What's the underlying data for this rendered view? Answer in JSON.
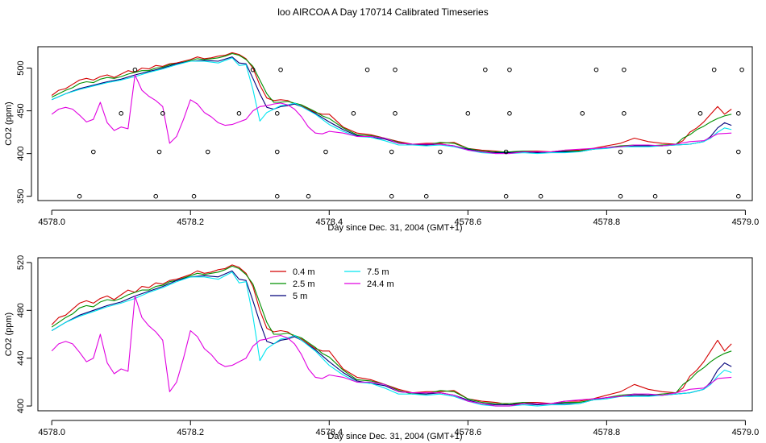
{
  "page_title": "loo AIRCOA A  Day 170714  Calibrated Timeseries",
  "colors": {
    "0.4 m": "#d40000",
    "2.5 m": "#009000",
    "5 m": "#00007a",
    "7.5 m": "#00e5f0",
    "24.4 m": "#e000e0"
  },
  "chart_data": [
    {
      "type": "line",
      "xlabel": "Day since Dec. 31, 2004 (GMT+1)",
      "ylabel": "CO2 (ppm)",
      "xlim": [
        4577.98,
        4579.01
      ],
      "ylim": [
        345,
        525
      ],
      "xticks": [
        4578.0,
        4578.2,
        4578.4,
        4578.6,
        4578.8,
        4579.0
      ],
      "xtick_labels": [
        "4578.0",
        "4578.2",
        "4578.4",
        "4578.6",
        "4578.8",
        "4579.0"
      ],
      "yticks": [
        350,
        400,
        450,
        500
      ],
      "ytick_labels": [
        "350",
        "400",
        "450",
        "500"
      ],
      "legend": false,
      "series": [
        {
          "color_key": "0.4 m",
          "x": [
            4578.0,
            4578.01,
            4578.02,
            4578.03,
            4578.04,
            4578.05,
            4578.06,
            4578.07,
            4578.08,
            4578.09,
            4578.1,
            4578.11,
            4578.12,
            4578.13,
            4578.14,
            4578.15,
            4578.16,
            4578.17,
            4578.18,
            4578.19,
            4578.2,
            4578.21,
            4578.22,
            4578.23,
            4578.24,
            4578.25,
            4578.26,
            4578.27,
            4578.28,
            4578.29,
            4578.3,
            4578.31,
            4578.32,
            4578.33,
            4578.34,
            4578.35,
            4578.36,
            4578.37,
            4578.38,
            4578.39,
            4578.4,
            4578.42,
            4578.44,
            4578.46,
            4578.48,
            4578.5,
            4578.52,
            4578.54,
            4578.56,
            4578.58,
            4578.6,
            4578.62,
            4578.64,
            4578.66,
            4578.68,
            4578.7,
            4578.72,
            4578.74,
            4578.76,
            4578.78,
            4578.8,
            4578.82,
            4578.84,
            4578.86,
            4578.88,
            4578.9,
            4578.91,
            4578.92,
            4578.93,
            4578.94,
            4578.95,
            4578.96,
            4578.97,
            4578.98
          ],
          "y": [
            468,
            474,
            476,
            481,
            486,
            488,
            486,
            490,
            492,
            489,
            493,
            497,
            495,
            500,
            499,
            503,
            502,
            505,
            506,
            508,
            510,
            513,
            511,
            512,
            514,
            515,
            518,
            516,
            511,
            500,
            480,
            465,
            462,
            463,
            462,
            458,
            456,
            452,
            448,
            446,
            446,
            431,
            424,
            422,
            418,
            414,
            411,
            412,
            412,
            413,
            406,
            404,
            403,
            401,
            403,
            403,
            402,
            404,
            404,
            406,
            409,
            412,
            418,
            414,
            412,
            411,
            415,
            425,
            430,
            437,
            446,
            455,
            446,
            452
          ]
        },
        {
          "color_key": "2.5 m",
          "x": [
            4578.0,
            4578.01,
            4578.02,
            4578.03,
            4578.04,
            4578.05,
            4578.06,
            4578.07,
            4578.08,
            4578.09,
            4578.1,
            4578.11,
            4578.12,
            4578.13,
            4578.14,
            4578.15,
            4578.16,
            4578.17,
            4578.18,
            4578.19,
            4578.2,
            4578.21,
            4578.22,
            4578.23,
            4578.24,
            4578.25,
            4578.26,
            4578.27,
            4578.28,
            4578.29,
            4578.3,
            4578.31,
            4578.32,
            4578.33,
            4578.34,
            4578.35,
            4578.36,
            4578.37,
            4578.38,
            4578.39,
            4578.4,
            4578.42,
            4578.44,
            4578.46,
            4578.48,
            4578.5,
            4578.52,
            4578.54,
            4578.56,
            4578.58,
            4578.6,
            4578.62,
            4578.64,
            4578.66,
            4578.68,
            4578.7,
            4578.72,
            4578.74,
            4578.76,
            4578.78,
            4578.8,
            4578.82,
            4578.84,
            4578.86,
            4578.88,
            4578.9,
            4578.91,
            4578.92,
            4578.93,
            4578.94,
            4578.95,
            4578.96,
            4578.97,
            4578.98
          ],
          "y": [
            466,
            470,
            474,
            477,
            482,
            484,
            483,
            487,
            489,
            488,
            490,
            493,
            495,
            497,
            497,
            500,
            501,
            504,
            505,
            507,
            509,
            511,
            510,
            511,
            512,
            514,
            517,
            515,
            510,
            502,
            486,
            470,
            460,
            460,
            461,
            459,
            457,
            453,
            449,
            444,
            441,
            430,
            422,
            421,
            418,
            413,
            410,
            410,
            413,
            412,
            406,
            403,
            402,
            402,
            403,
            402,
            402,
            403,
            403,
            405,
            407,
            409,
            410,
            409,
            410,
            411,
            418,
            422,
            428,
            432,
            437,
            441,
            444,
            446
          ]
        },
        {
          "color_key": "5 m",
          "x": [
            4578.0,
            4578.02,
            4578.04,
            4578.06,
            4578.08,
            4578.1,
            4578.12,
            4578.14,
            4578.16,
            4578.18,
            4578.2,
            4578.22,
            4578.24,
            4578.26,
            4578.27,
            4578.28,
            4578.29,
            4578.3,
            4578.31,
            4578.32,
            4578.33,
            4578.34,
            4578.35,
            4578.36,
            4578.38,
            4578.4,
            4578.42,
            4578.44,
            4578.46,
            4578.48,
            4578.5,
            4578.52,
            4578.54,
            4578.56,
            4578.58,
            4578.6,
            4578.62,
            4578.64,
            4578.66,
            4578.68,
            4578.7,
            4578.72,
            4578.74,
            4578.76,
            4578.78,
            4578.8,
            4578.82,
            4578.84,
            4578.86,
            4578.88,
            4578.9,
            4578.92,
            4578.94,
            4578.95,
            4578.96,
            4578.97,
            4578.98
          ],
          "y": [
            463,
            470,
            476,
            480,
            484,
            487,
            492,
            496,
            500,
            505,
            508,
            509,
            508,
            513,
            506,
            505,
            488,
            470,
            454,
            452,
            455,
            456,
            458,
            455,
            447,
            437,
            428,
            421,
            419,
            417,
            412,
            411,
            410,
            411,
            409,
            405,
            402,
            401,
            401,
            402,
            401,
            402,
            402,
            402,
            405,
            407,
            408,
            409,
            409,
            409,
            410,
            411,
            414,
            420,
            430,
            436,
            433
          ]
        },
        {
          "color_key": "7.5 m",
          "x": [
            4578.0,
            4578.02,
            4578.04,
            4578.06,
            4578.08,
            4578.1,
            4578.12,
            4578.14,
            4578.16,
            4578.18,
            4578.2,
            4578.22,
            4578.24,
            4578.26,
            4578.27,
            4578.28,
            4578.29,
            4578.3,
            4578.31,
            4578.32,
            4578.33,
            4578.34,
            4578.35,
            4578.36,
            4578.38,
            4578.4,
            4578.42,
            4578.44,
            4578.46,
            4578.48,
            4578.5,
            4578.52,
            4578.54,
            4578.56,
            4578.58,
            4578.6,
            4578.62,
            4578.64,
            4578.66,
            4578.68,
            4578.7,
            4578.72,
            4578.74,
            4578.76,
            4578.78,
            4578.8,
            4578.82,
            4578.84,
            4578.86,
            4578.88,
            4578.9,
            4578.92,
            4578.94,
            4578.95,
            4578.96,
            4578.97,
            4578.98
          ],
          "y": [
            463,
            470,
            475,
            479,
            483,
            486,
            490,
            495,
            499,
            504,
            508,
            508,
            506,
            512,
            503,
            504,
            475,
            438,
            448,
            452,
            456,
            457,
            459,
            455,
            446,
            434,
            426,
            420,
            419,
            415,
            410,
            410,
            409,
            410,
            408,
            404,
            401,
            400,
            400,
            401,
            400,
            401,
            401,
            402,
            405,
            406,
            408,
            408,
            408,
            409,
            410,
            411,
            414,
            418,
            425,
            430,
            428
          ]
        },
        {
          "color_key": "24.4 m",
          "x": [
            4578.0,
            4578.01,
            4578.02,
            4578.03,
            4578.04,
            4578.05,
            4578.06,
            4578.07,
            4578.08,
            4578.09,
            4578.1,
            4578.11,
            4578.12,
            4578.13,
            4578.14,
            4578.15,
            4578.16,
            4578.17,
            4578.18,
            4578.19,
            4578.2,
            4578.21,
            4578.22,
            4578.23,
            4578.24,
            4578.25,
            4578.26,
            4578.27,
            4578.28,
            4578.29,
            4578.3,
            4578.31,
            4578.32,
            4578.33,
            4578.34,
            4578.35,
            4578.36,
            4578.37,
            4578.38,
            4578.39,
            4578.4,
            4578.42,
            4578.44,
            4578.46,
            4578.48,
            4578.5,
            4578.52,
            4578.54,
            4578.56,
            4578.58,
            4578.6,
            4578.62,
            4578.64,
            4578.66,
            4578.68,
            4578.7,
            4578.72,
            4578.74,
            4578.76,
            4578.78,
            4578.8,
            4578.82,
            4578.84,
            4578.86,
            4578.88,
            4578.9,
            4578.92,
            4578.94,
            4578.96,
            4578.98
          ],
          "y": [
            446,
            452,
            454,
            452,
            445,
            437,
            440,
            460,
            436,
            427,
            431,
            429,
            492,
            474,
            467,
            462,
            455,
            412,
            420,
            440,
            463,
            458,
            448,
            443,
            436,
            433,
            434,
            437,
            440,
            450,
            455,
            456,
            458,
            459,
            457,
            452,
            443,
            431,
            424,
            423,
            426,
            424,
            420,
            420,
            418,
            412,
            411,
            411,
            411,
            409,
            404,
            402,
            400,
            400,
            402,
            402,
            402,
            404,
            405,
            406,
            407,
            408,
            410,
            410,
            409,
            411,
            414,
            415,
            423,
            424
          ]
        }
      ],
      "scatter": {
        "x": [
          4578.04,
          4578.06,
          4578.1,
          4578.12,
          4578.15,
          4578.155,
          4578.16,
          4578.205,
          4578.225,
          4578.27,
          4578.29,
          4578.325,
          4578.325,
          4578.325,
          4578.33,
          4578.37,
          4578.395,
          4578.435,
          4578.455,
          4578.49,
          4578.49,
          4578.495,
          4578.495,
          4578.54,
          4578.56,
          4578.6,
          4578.625,
          4578.655,
          4578.655,
          4578.66,
          4578.66,
          4578.705,
          4578.765,
          4578.785,
          4578.82,
          4578.82,
          4578.825,
          4578.825,
          4578.87,
          4578.89,
          4578.935,
          4578.955,
          4578.99,
          4578.99,
          4578.99,
          4578.995
        ],
        "y": [
          350,
          402,
          447,
          498,
          350,
          402,
          447,
          350,
          402,
          447,
          498,
          350,
          402,
          447,
          498,
          350,
          402,
          447,
          498,
          350,
          402,
          447,
          498,
          350,
          402,
          447,
          498,
          350,
          402,
          447,
          498,
          350,
          447,
          498,
          350,
          402,
          447,
          498,
          350,
          402,
          447,
          498,
          350,
          402,
          447,
          498
        ]
      }
    },
    {
      "type": "line",
      "xlabel": "Day since Dec. 31, 2004 (GMT+1)",
      "ylabel": "CO2 (ppm)",
      "xlim": [
        4577.98,
        4579.01
      ],
      "ylim": [
        396,
        524
      ],
      "xticks": [
        4578.0,
        4578.2,
        4578.4,
        4578.6,
        4578.8,
        4579.0
      ],
      "xtick_labels": [
        "4578.0",
        "4578.2",
        "4578.4",
        "4578.6",
        "4578.8",
        "4579.0"
      ],
      "yticks": [
        400,
        440,
        480,
        520
      ],
      "ytick_labels": [
        "400",
        "440",
        "480",
        "520"
      ],
      "legend": true,
      "legend_position": "top-center",
      "legend_entries": [
        {
          "name": "0.4 m",
          "color_key": "0.4 m"
        },
        {
          "name": "2.5 m",
          "color_key": "2.5 m"
        },
        {
          "name": "5 m",
          "color_key": "5 m"
        },
        {
          "name": "7.5 m",
          "color_key": "7.5 m"
        },
        {
          "name": "24.4 m",
          "color_key": "24.4 m"
        }
      ],
      "same_series_as_panel": 0
    }
  ]
}
